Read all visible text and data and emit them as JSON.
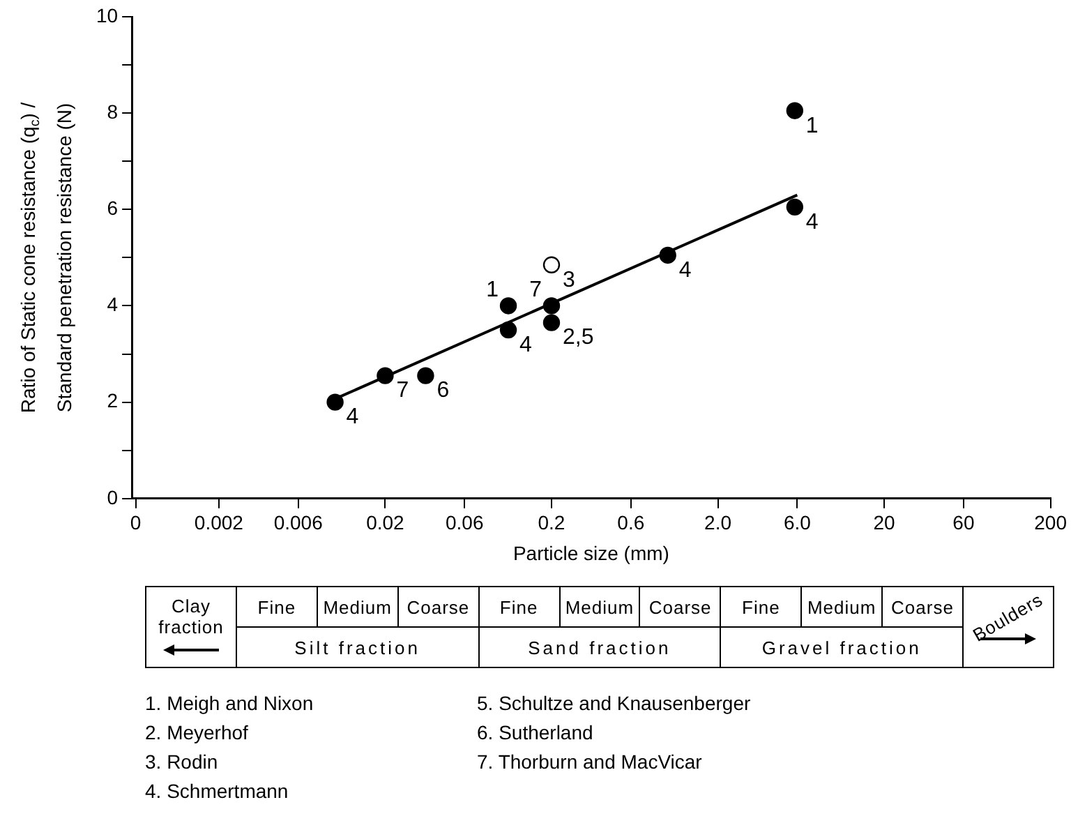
{
  "chart_data": [
    {
      "type": "scatter",
      "xlabel": "Particle size (mm)",
      "ylabel": "Ratio of Static cone resistance (q$_{c}$) / Standard penetration resistance (N)",
      "log": "x",
      "xlim": [
        0.0006324,
        200
      ],
      "xticks": [
        {
          "value": 0.0006324,
          "label": "0"
        },
        0.002,
        0.006,
        0.02,
        0.06,
        0.2,
        0.6,
        {
          "value": 2,
          "label": "2.0"
        },
        {
          "value": 6,
          "label": "6.0"
        },
        20,
        60,
        200
      ],
      "ylim": [
        0,
        10
      ],
      "yticks": [
        0,
        {
          "value": 1,
          "label": null
        },
        2,
        {
          "value": 3,
          "label": null
        },
        4,
        {
          "value": 5,
          "label": null
        },
        6,
        {
          "value": 7,
          "label": null
        },
        8,
        {
          "value": 9,
          "label": null
        },
        10
      ],
      "grid": false,
      "legend": false,
      "marker": "circle",
      "series": [
        {
          "type": "scatter",
          "color": "#000000",
          "x": [
            0.01,
            0.02,
            0.035,
            0.11,
            0.11,
            0.2,
            0.2,
            1.0,
            5.8,
            5.8
          ],
          "values": [
            2.0,
            2.55,
            2.55,
            4.0,
            3.5,
            4.0,
            3.65,
            5.05,
            6.05,
            8.05
          ]
        },
        {
          "type": "scatter",
          "color": "#ffffff",
          "x": [
            0.2
          ],
          "values": [
            4.85
          ]
        },
        {
          "type": "line",
          "color": "#000000",
          "marker": "none",
          "x": [
            0.009,
            6.0
          ],
          "values": [
            2.0,
            6.3
          ]
        }
      ],
      "annotations": [
        {
          "text": "4",
          "x": 0.01,
          "y": 2.0
        },
        {
          "text": "7",
          "x": 0.02,
          "y": 2.55
        },
        {
          "text": "6",
          "x": 0.035,
          "y": 2.55
        },
        {
          "text": "1",
          "x": 0.11,
          "y": 4.0
        },
        {
          "text": "4",
          "x": 0.11,
          "y": 3.5
        },
        {
          "text": "7",
          "x": 0.2,
          "y": 4.0
        },
        {
          "text": "3",
          "x": 0.2,
          "y": 4.85
        },
        {
          "text": "2,5",
          "x": 0.2,
          "y": 3.65
        },
        {
          "text": "4",
          "x": 1.0,
          "y": 5.05
        },
        {
          "text": "4",
          "x": 5.8,
          "y": 6.05
        },
        {
          "text": "1",
          "x": 5.8,
          "y": 8.05
        },
        "1. Meigh and Nixon",
        "2. Meyerhof",
        "3. Rodin",
        "4. Schmertmann",
        "5. Schultze and Knausenberger",
        "6. Sutherland",
        "7. Thorburn and MacVicar"
      ]
    },
    {
      "type": "other",
      "annotations": [
        "Clay fraction",
        "Fine",
        "Medium",
        "Coarse",
        "Fine",
        "Medium",
        "Coarse",
        "Fine",
        "Medium",
        "Coarse",
        "Silt fraction",
        "Sand fraction",
        "Gravel fraction",
        "Boulders"
      ]
    }
  ]
}
